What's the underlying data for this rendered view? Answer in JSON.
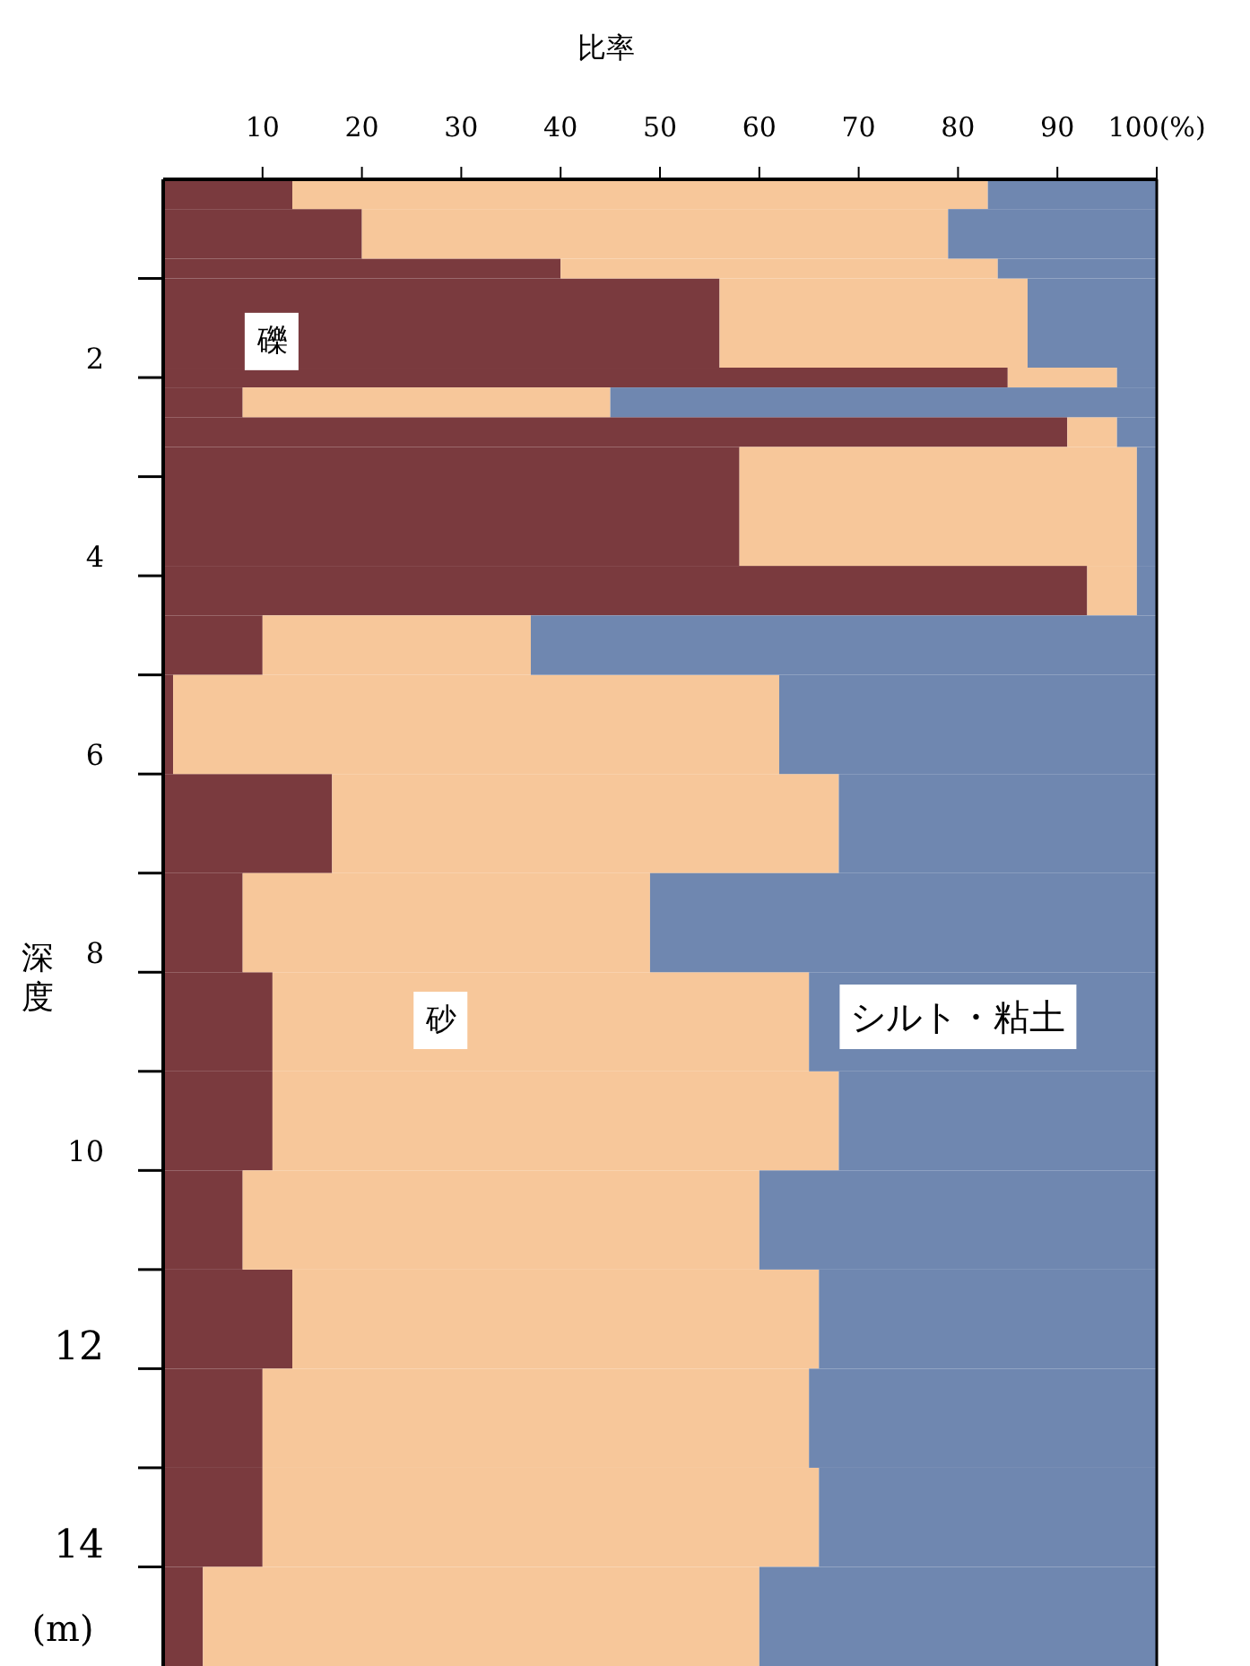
{
  "chart_data": {
    "type": "bar",
    "orientation": "horizontal",
    "stacked": true,
    "xlabel": "比率",
    "ylabel": "深度",
    "annotations": [
      "(m)"
    ],
    "x": [
      0.15,
      0.55,
      0.9,
      1.45,
      2.0,
      2.25,
      2.55,
      3.3,
      4.15,
      4.7,
      5.5,
      6.5,
      7.5,
      8.5,
      9.5,
      10.5,
      11.5,
      12.5,
      13.5,
      14.5
    ],
    "series": [
      {
        "name": "礫",
        "color": "#7a3a3e",
        "values": [
          13,
          20,
          40,
          56,
          85,
          8,
          91,
          58,
          93,
          10,
          1,
          17,
          8,
          11,
          11,
          8,
          13,
          10,
          10,
          4
        ]
      },
      {
        "name": "砂",
        "color": "#f7c79a",
        "values": [
          70,
          59,
          44,
          31,
          11,
          37,
          5,
          40,
          5,
          27,
          61,
          51,
          41,
          54,
          57,
          52,
          53,
          55,
          56,
          56
        ]
      },
      {
        "name": "シルト・粘土",
        "color": "#6f87b0",
        "values": [
          17,
          21,
          16,
          13,
          4,
          55,
          4,
          2,
          2,
          63,
          38,
          32,
          51,
          35,
          32,
          40,
          34,
          35,
          34,
          40
        ]
      }
    ],
    "xlim": [
      0,
      100
    ],
    "xticks": [
      10,
      20,
      30,
      40,
      50,
      60,
      70,
      80,
      90,
      {
        "value": 100,
        "label": "100(%)"
      }
    ],
    "ylim": [
      15,
      0
    ],
    "yticks": [
      {
        "value": 1,
        "label": null
      },
      2,
      {
        "value": 3,
        "label": null
      },
      4,
      {
        "value": 5,
        "label": null
      },
      6,
      {
        "value": 7,
        "label": null
      },
      8,
      {
        "value": 9,
        "label": null
      },
      10,
      {
        "value": 11,
        "label": null
      },
      12,
      {
        "value": 13,
        "label": null
      },
      14
    ]
  }
}
